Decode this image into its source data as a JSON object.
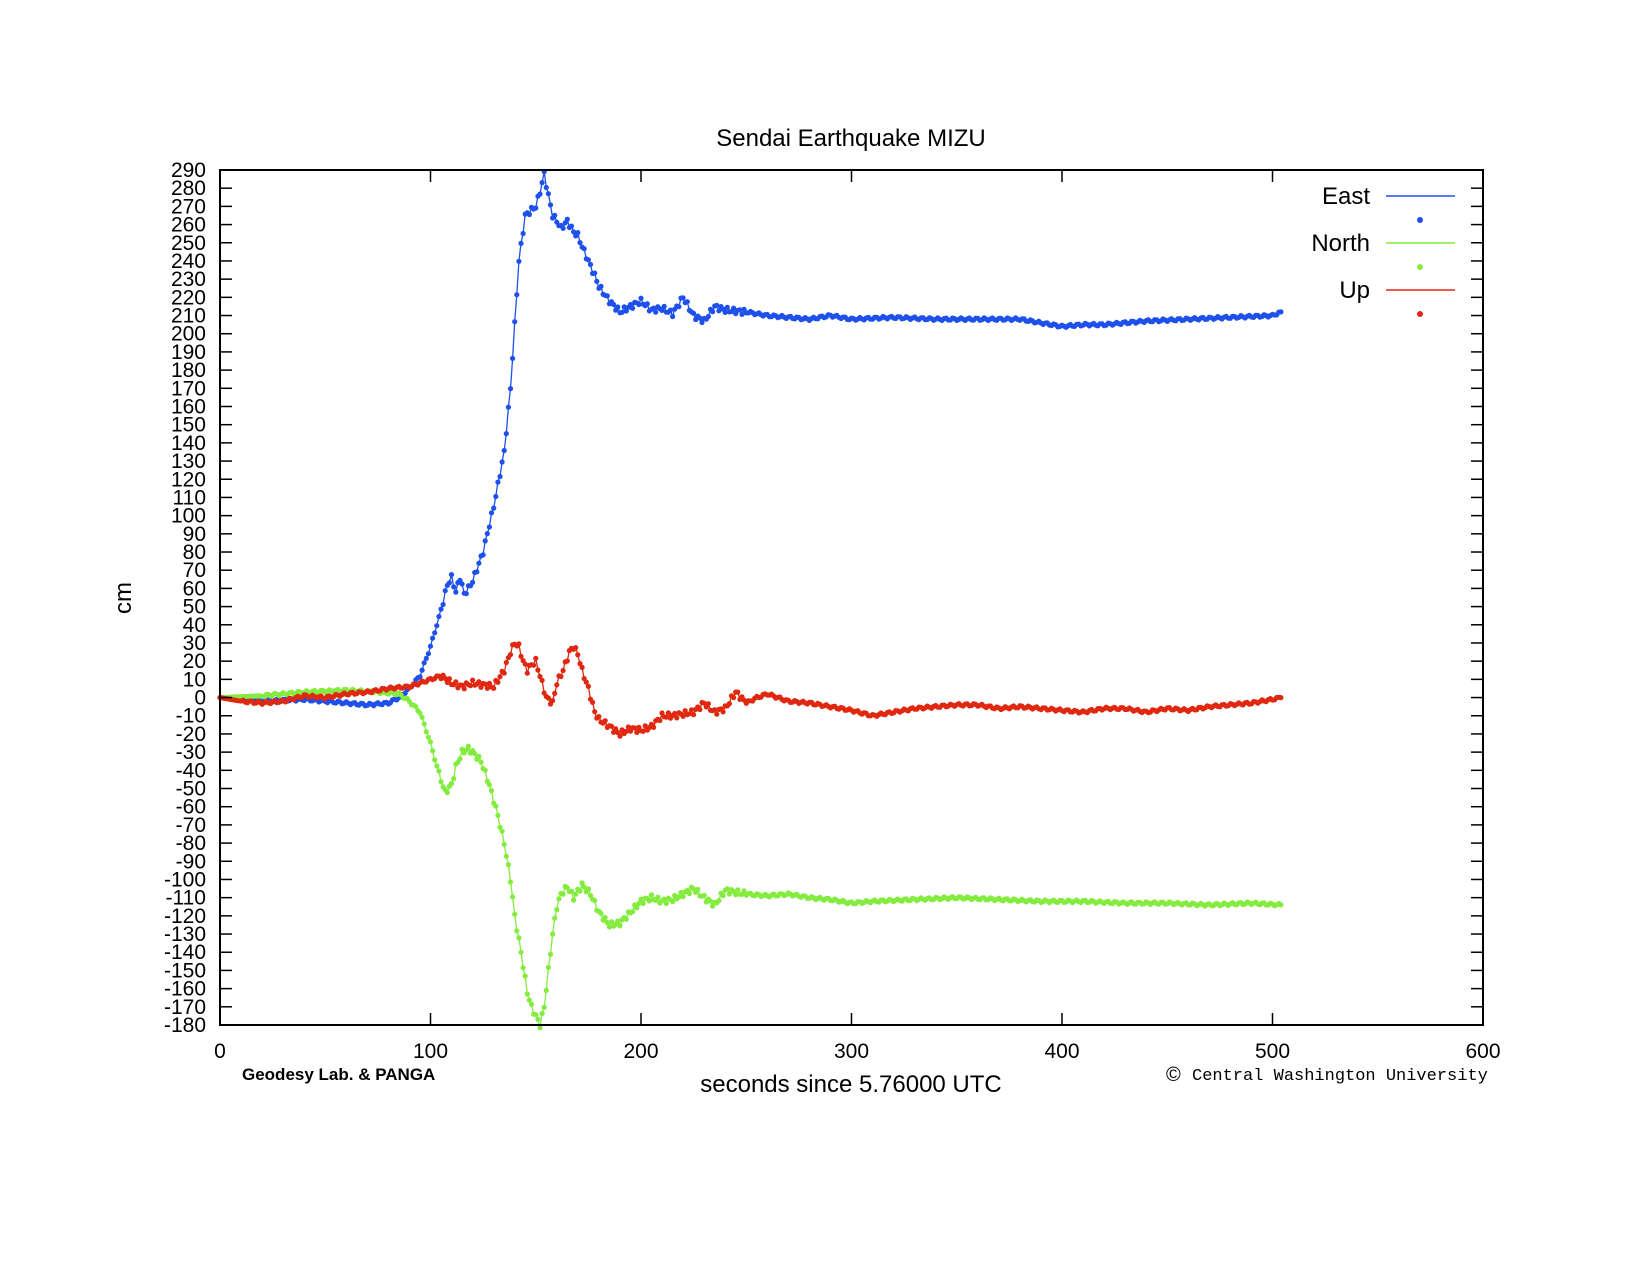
{
  "chart_data": {
    "type": "line",
    "title": "Sendai Earthquake MIZU",
    "xlabel": "seconds since 5.76000 UTC",
    "ylabel": "cm",
    "xlim": [
      0,
      600
    ],
    "ylim": [
      -180,
      290
    ],
    "xticks": [
      0,
      100,
      200,
      300,
      400,
      500,
      600
    ],
    "yticks": [
      290,
      280,
      270,
      260,
      250,
      240,
      230,
      220,
      210,
      200,
      190,
      180,
      170,
      160,
      150,
      140,
      130,
      120,
      110,
      100,
      90,
      80,
      70,
      60,
      50,
      40,
      30,
      20,
      10,
      0,
      -10,
      -20,
      -30,
      -40,
      -50,
      -60,
      -70,
      -80,
      -90,
      -100,
      -110,
      -120,
      -130,
      -140,
      -150,
      -160,
      -170,
      -180
    ],
    "grid": false,
    "legend_position": "top-right",
    "markers": true,
    "series": [
      {
        "name": "East",
        "color": "#1e50ec",
        "x": [
          0,
          20,
          40,
          60,
          70,
          80,
          85,
          90,
          95,
          100,
          105,
          108,
          110,
          112,
          114,
          116,
          118,
          120,
          125,
          130,
          135,
          138,
          140,
          142,
          145,
          148,
          150,
          152,
          154,
          156,
          158,
          160,
          162,
          165,
          168,
          170,
          172,
          175,
          178,
          180,
          185,
          190,
          195,
          200,
          205,
          210,
          215,
          220,
          225,
          230,
          235,
          240,
          250,
          260,
          270,
          280,
          290,
          300,
          320,
          340,
          360,
          380,
          400,
          410,
          420,
          440,
          460,
          480,
          500,
          504
        ],
        "y": [
          0,
          -2,
          -1,
          -3,
          -4,
          -3,
          0,
          5,
          12,
          28,
          48,
          62,
          66,
          58,
          66,
          57,
          60,
          64,
          80,
          105,
          135,
          170,
          205,
          240,
          265,
          268,
          270,
          278,
          288,
          276,
          265,
          262,
          258,
          262,
          256,
          254,
          248,
          240,
          232,
          226,
          218,
          212,
          215,
          218,
          213,
          214,
          211,
          220,
          210,
          207,
          215,
          213,
          212,
          210,
          209,
          208,
          210,
          208,
          209,
          208,
          208,
          208,
          204,
          205,
          205,
          207,
          208,
          209,
          210,
          212
        ]
      },
      {
        "name": "North",
        "color": "#84ec3e",
        "x": [
          0,
          20,
          40,
          60,
          75,
          85,
          90,
          95,
          100,
          104,
          107,
          110,
          112,
          115,
          118,
          120,
          124,
          128,
          132,
          135,
          138,
          140,
          143,
          146,
          148,
          150,
          152,
          154,
          156,
          158,
          160,
          162,
          165,
          168,
          172,
          176,
          180,
          185,
          190,
          195,
          200,
          205,
          210,
          215,
          220,
          225,
          230,
          235,
          240,
          250,
          260,
          270,
          280,
          290,
          300,
          310,
          330,
          350,
          370,
          390,
          410,
          430,
          450,
          470,
          490,
          504
        ],
        "y": [
          0,
          1,
          3,
          4,
          3,
          2,
          -2,
          -8,
          -25,
          -42,
          -52,
          -48,
          -38,
          -30,
          -28,
          -30,
          -35,
          -48,
          -65,
          -80,
          -100,
          -120,
          -140,
          -162,
          -170,
          -175,
          -180,
          -170,
          -150,
          -130,
          -115,
          -108,
          -104,
          -110,
          -103,
          -108,
          -118,
          -125,
          -124,
          -118,
          -112,
          -110,
          -112,
          -111,
          -108,
          -105,
          -110,
          -114,
          -106,
          -108,
          -109,
          -108,
          -110,
          -111,
          -113,
          -112,
          -111,
          -110,
          -111,
          -112,
          -112,
          -113,
          -113,
          -114,
          -113,
          -114
        ]
      },
      {
        "name": "Up",
        "color": "#e02810",
        "x": [
          0,
          10,
          20,
          30,
          40,
          50,
          60,
          70,
          80,
          90,
          95,
          100,
          105,
          110,
          115,
          120,
          125,
          130,
          135,
          138,
          140,
          142,
          144,
          146,
          148,
          150,
          152,
          155,
          158,
          160,
          163,
          166,
          168,
          170,
          172,
          175,
          178,
          180,
          184,
          190,
          195,
          200,
          205,
          210,
          215,
          220,
          225,
          230,
          235,
          240,
          245,
          250,
          255,
          260,
          270,
          280,
          290,
          300,
          310,
          320,
          330,
          340,
          350,
          360,
          370,
          380,
          390,
          400,
          410,
          420,
          430,
          440,
          450,
          460,
          470,
          480,
          490,
          500,
          504
        ],
        "y": [
          0,
          -2,
          -3,
          -2,
          1,
          0,
          2,
          3,
          5,
          6,
          8,
          10,
          12,
          8,
          6,
          8,
          7,
          6,
          15,
          25,
          30,
          28,
          20,
          15,
          18,
          20,
          12,
          0,
          -3,
          8,
          15,
          25,
          28,
          24,
          15,
          5,
          -8,
          -12,
          -15,
          -20,
          -17,
          -18,
          -16,
          -10,
          -10,
          -9,
          -8,
          -3,
          -8,
          -6,
          3,
          -3,
          0,
          2,
          -2,
          -3,
          -5,
          -7,
          -10,
          -8,
          -6,
          -5,
          -4,
          -4,
          -6,
          -5,
          -6,
          -7,
          -8,
          -6,
          -6,
          -8,
          -6,
          -7,
          -5,
          -4,
          -3,
          -1,
          0
        ]
      }
    ]
  },
  "credits": {
    "left": "Geodesy Lab. & PANGA",
    "copyright_symbol": "©",
    "right": "Central Washington University"
  }
}
